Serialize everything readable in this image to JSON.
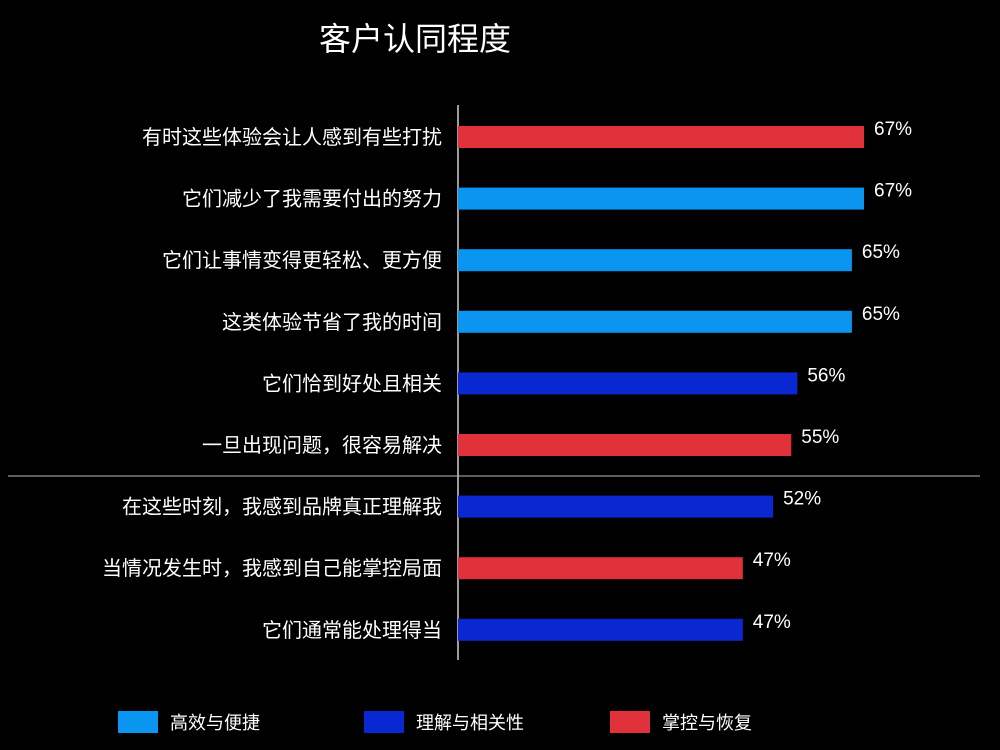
{
  "chart_data": {
    "type": "bar",
    "orientation": "horizontal",
    "title": "客户认同程度",
    "value_suffix": "%",
    "xlim": [
      0,
      100
    ],
    "grid": false,
    "legend_position": "bottom",
    "categories": [
      "有时这些体验会让人感到有些打扰",
      "它们减少了我需要付出的努力",
      "它们让事情变得更轻松、更方便",
      "这类体验节省了我的时间",
      "它们恰到好处且相关",
      "一旦出现问题，很容易解决",
      "在这些时刻，我感到品牌真正理解我",
      "当情况发生时，我感到自己能掌控局面",
      "它们通常能处理得当"
    ],
    "values": [
      67,
      67,
      65,
      65,
      56,
      55,
      52,
      47,
      47
    ],
    "labels": [
      "67%",
      "67%",
      "65%",
      "65%",
      "56%",
      "55%",
      "52%",
      "47%",
      "47%"
    ],
    "groups": [
      "control",
      "efficiency",
      "efficiency",
      "efficiency",
      "relevance",
      "control",
      "relevance",
      "control",
      "relevance"
    ],
    "legend": [
      {
        "key": "efficiency",
        "label": "高效与便捷",
        "color": "#0a96f0"
      },
      {
        "key": "relevance",
        "label": "理解与相关性",
        "color": "#0a28d2"
      },
      {
        "key": "control",
        "label": "掌控与恢复",
        "color": "#e0313a"
      }
    ]
  }
}
